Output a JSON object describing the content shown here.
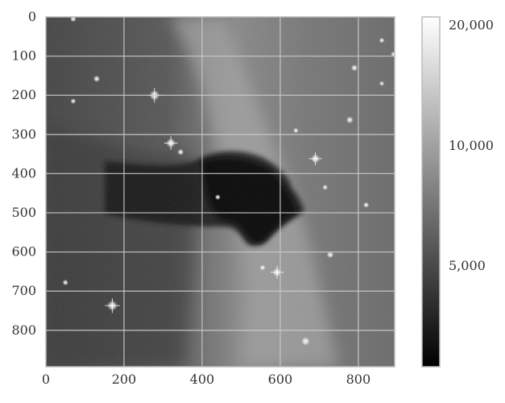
{
  "chart_data": {
    "type": "heatmap",
    "title": "",
    "xlabel": "",
    "ylabel": "",
    "colormap": "gray",
    "grid": true,
    "image_extent": {
      "x": [
        0,
        893
      ],
      "y": [
        0,
        893
      ]
    },
    "x_ticks": [
      {
        "value": 0,
        "label": "0"
      },
      {
        "value": 200,
        "label": "200"
      },
      {
        "value": 400,
        "label": "400"
      },
      {
        "value": 600,
        "label": "600"
      },
      {
        "value": 800,
        "label": "800"
      }
    ],
    "y_ticks": [
      {
        "value": 0,
        "label": "0"
      },
      {
        "value": 100,
        "label": "100"
      },
      {
        "value": 200,
        "label": "200"
      },
      {
        "value": 300,
        "label": "300"
      },
      {
        "value": 400,
        "label": "400"
      },
      {
        "value": 500,
        "label": "500"
      },
      {
        "value": 600,
        "label": "600"
      },
      {
        "value": 700,
        "label": "700"
      },
      {
        "value": 800,
        "label": "800"
      }
    ],
    "colorbar": {
      "scale": "log",
      "range": [
        2800,
        21000
      ],
      "ticks": [
        {
          "value": 5000,
          "label": "5,000"
        },
        {
          "value": 10000,
          "label": "10,000"
        },
        {
          "value": 20000,
          "label": "20,000"
        }
      ]
    },
    "stars": [
      {
        "x": 278,
        "y": 200,
        "brightness": 1.0
      },
      {
        "x": 320,
        "y": 322,
        "brightness": 0.9
      },
      {
        "x": 170,
        "y": 737,
        "brightness": 1.0
      },
      {
        "x": 690,
        "y": 362,
        "brightness": 0.85
      },
      {
        "x": 592,
        "y": 652,
        "brightness": 0.85
      },
      {
        "x": 665,
        "y": 828,
        "brightness": 0.8
      },
      {
        "x": 728,
        "y": 607,
        "brightness": 0.6
      },
      {
        "x": 778,
        "y": 263,
        "brightness": 0.6
      },
      {
        "x": 130,
        "y": 158,
        "brightness": 0.55
      },
      {
        "x": 345,
        "y": 345,
        "brightness": 0.5
      },
      {
        "x": 790,
        "y": 130,
        "brightness": 0.55
      },
      {
        "x": 70,
        "y": 5,
        "brightness": 0.5
      },
      {
        "x": 70,
        "y": 215,
        "brightness": 0.4
      },
      {
        "x": 50,
        "y": 678,
        "brightness": 0.45
      },
      {
        "x": 555,
        "y": 640,
        "brightness": 0.45
      },
      {
        "x": 820,
        "y": 480,
        "brightness": 0.45
      },
      {
        "x": 860,
        "y": 60,
        "brightness": 0.4
      },
      {
        "x": 890,
        "y": 95,
        "brightness": 0.4
      },
      {
        "x": 440,
        "y": 460,
        "brightness": 0.4
      },
      {
        "x": 715,
        "y": 435,
        "brightness": 0.4
      },
      {
        "x": 640,
        "y": 290,
        "brightness": 0.4
      },
      {
        "x": 860,
        "y": 170,
        "brightness": 0.35
      }
    ]
  }
}
